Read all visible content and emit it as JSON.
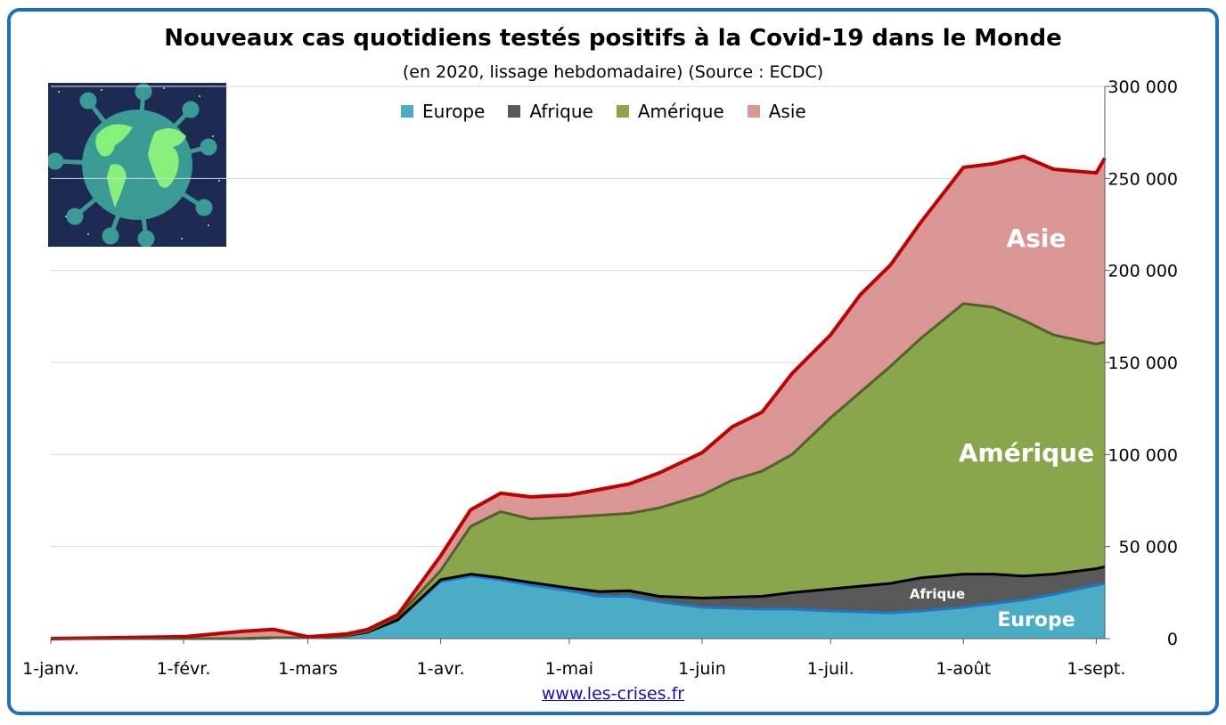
{
  "chart_data": {
    "type": "area",
    "stacked": true,
    "title": "Nouveaux cas quotidiens testés positifs à la Covid-19 dans le Monde",
    "subtitle": "(en 2020, lissage hebdomadaire) (Source : ECDC)",
    "xlabel": "",
    "ylabel": "",
    "x_unit": "day of 2020 (0 = 1 janvier)",
    "x": [
      0,
      31,
      45,
      52,
      60,
      69,
      74,
      81,
      91,
      98,
      105,
      112,
      121,
      128,
      135,
      142,
      152,
      159,
      166,
      173,
      182,
      189,
      196,
      203,
      213,
      220,
      227,
      234,
      244,
      246
    ],
    "series": [
      {
        "name": "Europe",
        "color": "#4bacc6",
        "line": "#1f77c8",
        "values": [
          0,
          0,
          0,
          500,
          500,
          1500,
          3500,
          10000,
          31000,
          34000,
          32000,
          29000,
          26000,
          23000,
          23000,
          20000,
          17000,
          16500,
          16000,
          16000,
          15000,
          14500,
          14000,
          15000,
          17000,
          19000,
          21000,
          24000,
          29000,
          30000
        ]
      },
      {
        "name": "Afrique",
        "color": "#595959",
        "line": "#000000",
        "values": [
          0,
          0,
          0,
          0,
          0,
          0,
          0,
          200,
          1000,
          1000,
          1000,
          1500,
          1500,
          2500,
          3000,
          3000,
          5000,
          6000,
          7000,
          9000,
          12000,
          14000,
          16000,
          18000,
          18000,
          16000,
          13000,
          11000,
          9000,
          9000
        ]
      },
      {
        "name": "Amérique",
        "color": "#8aa64c",
        "line": "#4f6228",
        "values": [
          0,
          0,
          0,
          0,
          0,
          200,
          500,
          1800,
          5000,
          26000,
          36000,
          34500,
          38500,
          41500,
          42000,
          48000,
          56000,
          63500,
          68000,
          75000,
          93000,
          105500,
          118000,
          130000,
          147000,
          145000,
          139000,
          130000,
          122000,
          122000
        ]
      },
      {
        "name": "Asie",
        "color": "#d99694",
        "line": "#c00000",
        "values": [
          0,
          1000,
          4000,
          4500,
          500,
          800,
          1000,
          1000,
          8000,
          9000,
          10000,
          12000,
          12000,
          14000,
          16000,
          19000,
          23000,
          29000,
          32000,
          44000,
          45000,
          53000,
          55000,
          63000,
          74000,
          78000,
          89000,
          90000,
          93000,
          100000
        ]
      }
    ],
    "xticks": [
      {
        "day": 0,
        "label": "1-janv."
      },
      {
        "day": 31,
        "label": "1-févr."
      },
      {
        "day": 60,
        "label": "1-mars"
      },
      {
        "day": 91,
        "label": "1-avr."
      },
      {
        "day": 121,
        "label": "1-mai"
      },
      {
        "day": 152,
        "label": "1-juin"
      },
      {
        "day": 182,
        "label": "1-juil."
      },
      {
        "day": 213,
        "label": "1-août"
      },
      {
        "day": 244,
        "label": "1-sept."
      }
    ],
    "yticks": [
      {
        "value": 0,
        "label": "0"
      },
      {
        "value": 50000,
        "label": "50 000"
      },
      {
        "value": 100000,
        "label": "100 000"
      },
      {
        "value": 150000,
        "label": "150 000"
      },
      {
        "value": 200000,
        "label": "200 000"
      },
      {
        "value": 250000,
        "label": "250 000"
      },
      {
        "value": 300000,
        "label": "300 000"
      }
    ],
    "ylim": [
      0,
      300000
    ],
    "xlim": [
      0,
      246
    ],
    "grid": true,
    "legend_position": "top-center",
    "annotations": [
      {
        "text": "Asie",
        "series": "Asie"
      },
      {
        "text": "Amérique",
        "series": "Amérique"
      },
      {
        "text": "Afrique",
        "series": "Afrique"
      },
      {
        "text": "Europe",
        "series": "Europe"
      }
    ]
  },
  "source_link": "www.les-crises.fr"
}
